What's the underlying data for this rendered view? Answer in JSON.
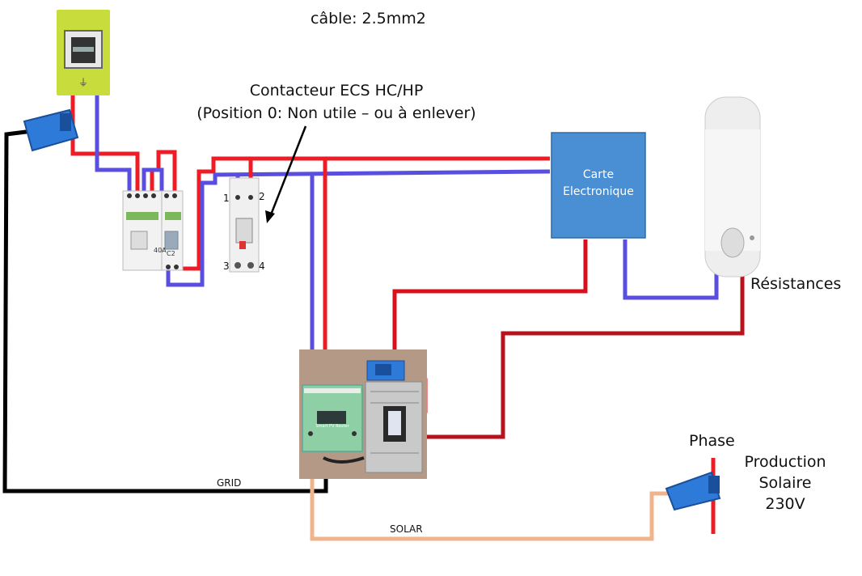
{
  "title": "câble: 2.5mm2",
  "contactor": {
    "line1": "Contacteur ECS HC/HP",
    "line2": "(Position 0: Non utile – ou à enlever)",
    "terminal_1": "1",
    "terminal_2": "2",
    "terminal_3": "3",
    "terminal_4": "4"
  },
  "carte": {
    "line1": "Carte",
    "line2": "Electronique"
  },
  "resistances_label": "Résistances",
  "phase_label": "Phase",
  "production": {
    "line1": "Production",
    "line2": "Solaire",
    "line3": "230V"
  },
  "grid_label": "GRID",
  "solar_label": "SOLAR",
  "breaker_rating_label": "40A",
  "breaker_curve_label": "C2",
  "router_label": "Smart PV Router",
  "colors": {
    "phase_wire": "#ee1c24",
    "neutral_wire": "#5a4ee0",
    "grid_wire": "#000000",
    "solar_wire": "#f0b48c",
    "carte_fill": "#4a8fd4",
    "meter_fill": "#c8dc3c"
  }
}
